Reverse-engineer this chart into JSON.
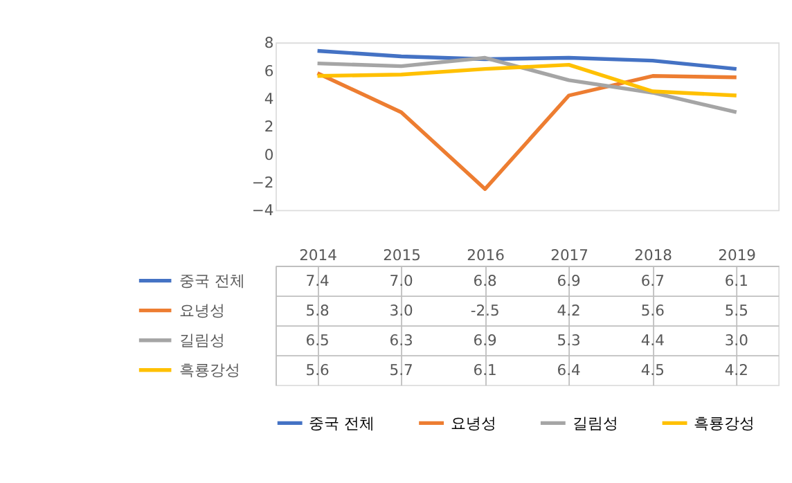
{
  "chart_data": {
    "type": "line",
    "categories": [
      "2014",
      "2015",
      "2016",
      "2017",
      "2018",
      "2019"
    ],
    "series": [
      {
        "name": "중국 전체",
        "color": "#4472c4",
        "values": [
          7.4,
          7.0,
          6.8,
          6.9,
          6.7,
          6.1
        ],
        "value_labels": [
          "7.4",
          "7.0",
          "6.8",
          "6.9",
          "6.7",
          "6.1"
        ]
      },
      {
        "name": "요녕성",
        "color": "#ed7d31",
        "values": [
          5.8,
          3.0,
          -2.5,
          4.2,
          5.6,
          5.5
        ],
        "value_labels": [
          "5.8",
          "3.0",
          "-2.5",
          "4.2",
          "5.6",
          "5.5"
        ]
      },
      {
        "name": "길림성",
        "color": "#a5a5a5",
        "values": [
          6.5,
          6.3,
          6.9,
          5.3,
          4.4,
          3.0
        ],
        "value_labels": [
          "6.5",
          "6.3",
          "6.9",
          "5.3",
          "4.4",
          "3.0"
        ]
      },
      {
        "name": "흑룡강성",
        "color": "#ffc000",
        "values": [
          5.6,
          5.7,
          6.1,
          6.4,
          4.5,
          4.2
        ],
        "value_labels": [
          "5.6",
          "5.7",
          "6.1",
          "6.4",
          "4.5",
          "4.2"
        ]
      }
    ],
    "ylim": [
      -4,
      8
    ],
    "yticks": [
      -4,
      -2,
      0,
      2,
      4,
      6,
      8
    ],
    "grid": false,
    "legend": "bottom",
    "marker": "none",
    "line_style": "solid"
  }
}
